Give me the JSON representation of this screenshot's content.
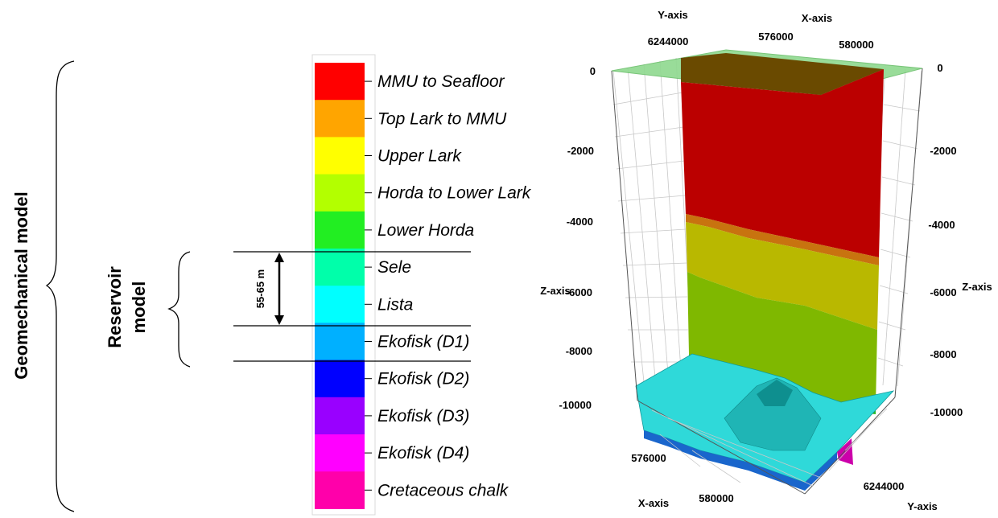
{
  "labels": {
    "geomechanical_model": "Geomechanical model",
    "reservoir_model_line1": "Reservoir",
    "reservoir_model_line2": "model",
    "thickness": "55-65 m"
  },
  "units": [
    {
      "name": "MMU to Seafloor",
      "color": "#ff0000"
    },
    {
      "name": "Top Lark to MMU",
      "color": "#ffa500"
    },
    {
      "name": "Upper Lark",
      "color": "#ffff00"
    },
    {
      "name": "Horda to Lower Lark",
      "color": "#b3ff00"
    },
    {
      "name": "Lower Horda",
      "color": "#22ee22"
    },
    {
      "name": "Sele",
      "color": "#00ffaa"
    },
    {
      "name": "Lista",
      "color": "#00ffff"
    },
    {
      "name": "Ekofisk (D1)",
      "color": "#00b0ff"
    },
    {
      "name": "Ekofisk (D2)",
      "color": "#0000ff"
    },
    {
      "name": "Ekofisk (D3)",
      "color": "#9900ff"
    },
    {
      "name": "Ekofisk (D4)",
      "color": "#ff00ff"
    },
    {
      "name": "Cretaceous chalk",
      "color": "#ff00aa"
    }
  ],
  "model3d": {
    "y_axis_title_top": "Y-axis",
    "x_axis_title_top": "X-axis",
    "y_tick_top": "6244000",
    "x_tick_top_1": "576000",
    "x_tick_top_2": "580000",
    "z_axis_title_left": "Z-axis",
    "z_axis_title_right": "Z-axis",
    "z_ticks_left": [
      "0",
      "-2000",
      "-4000",
      "-6000",
      "-8000",
      "-10000"
    ],
    "z_ticks_right": [
      "0",
      "-2000",
      "-4000",
      "-6000",
      "-8000",
      "-10000"
    ],
    "x_tick_bottom_1": "576000",
    "x_tick_bottom_2": "580000",
    "x_axis_title_bottom": "X-axis",
    "y_tick_bottom": "6244000",
    "y_axis_title_bottom": "Y-axis"
  }
}
